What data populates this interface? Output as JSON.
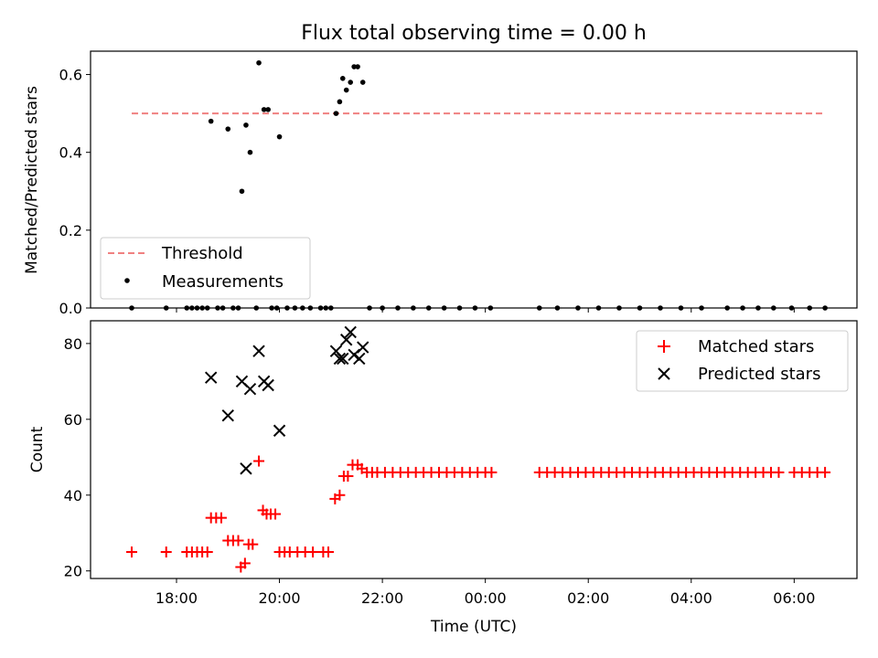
{
  "chart_data": [
    {
      "type": "scatter",
      "title": "Flux total observing time = 0.00 h",
      "xlabel": "",
      "ylabel": "Matched/Predicted stars",
      "xlim": [
        16.33,
        31.22
      ],
      "ylim": [
        0.0,
        0.66
      ],
      "yticks": [
        0.0,
        0.2,
        0.4,
        0.6
      ],
      "ytick_labels": [
        "0.0",
        "0.2",
        "0.4",
        "0.6"
      ],
      "legend": {
        "placement": "lower-left",
        "entries": [
          "Threshold",
          "Measurements"
        ]
      },
      "threshold": {
        "name": "Threshold",
        "y": 0.5,
        "x": [
          17.13,
          30.57
        ],
        "color": "#f08080",
        "style": "dashed"
      },
      "series": [
        {
          "name": "Measurements",
          "color": "#000000",
          "marker": "dot",
          "points": [
            [
              18.67,
              0.48
            ],
            [
              19.0,
              0.46
            ],
            [
              19.27,
              0.3
            ],
            [
              19.35,
              0.47
            ],
            [
              19.43,
              0.4
            ],
            [
              19.6,
              0.63
            ],
            [
              19.7,
              0.51
            ],
            [
              19.78,
              0.51
            ],
            [
              20.0,
              0.44
            ],
            [
              21.1,
              0.5
            ],
            [
              21.17,
              0.53
            ],
            [
              21.23,
              0.59
            ],
            [
              21.3,
              0.56
            ],
            [
              21.38,
              0.58
            ],
            [
              21.45,
              0.62
            ],
            [
              21.52,
              0.62
            ],
            [
              21.62,
              0.58
            ],
            [
              17.13,
              0.0
            ],
            [
              17.8,
              0.0
            ],
            [
              18.2,
              0.0
            ],
            [
              18.3,
              0.0
            ],
            [
              18.4,
              0.0
            ],
            [
              18.5,
              0.0
            ],
            [
              18.6,
              0.0
            ],
            [
              18.8,
              0.0
            ],
            [
              18.9,
              0.0
            ],
            [
              19.1,
              0.0
            ],
            [
              19.2,
              0.0
            ],
            [
              19.55,
              0.0
            ],
            [
              19.85,
              0.0
            ],
            [
              19.95,
              0.0
            ],
            [
              20.15,
              0.0
            ],
            [
              20.3,
              0.0
            ],
            [
              20.45,
              0.0
            ],
            [
              20.6,
              0.0
            ],
            [
              20.8,
              0.0
            ],
            [
              20.9,
              0.0
            ],
            [
              21.0,
              0.0
            ],
            [
              21.75,
              0.0
            ],
            [
              22.0,
              0.0
            ],
            [
              22.3,
              0.0
            ],
            [
              22.6,
              0.0
            ],
            [
              22.9,
              0.0
            ],
            [
              23.2,
              0.0
            ],
            [
              23.5,
              0.0
            ],
            [
              23.8,
              0.0
            ],
            [
              24.1,
              0.0
            ],
            [
              25.05,
              0.0
            ],
            [
              25.4,
              0.0
            ],
            [
              25.8,
              0.0
            ],
            [
              26.2,
              0.0
            ],
            [
              26.6,
              0.0
            ],
            [
              27.0,
              0.0
            ],
            [
              27.4,
              0.0
            ],
            [
              27.8,
              0.0
            ],
            [
              28.2,
              0.0
            ],
            [
              28.7,
              0.0
            ],
            [
              29.0,
              0.0
            ],
            [
              29.3,
              0.0
            ],
            [
              29.6,
              0.0
            ],
            [
              29.95,
              0.0
            ],
            [
              30.3,
              0.0
            ],
            [
              30.6,
              0.0
            ]
          ]
        }
      ]
    },
    {
      "type": "scatter",
      "title": "",
      "xlabel": "Time (UTC)",
      "ylabel": "Count",
      "xlim": [
        16.33,
        31.22
      ],
      "ylim": [
        18,
        86
      ],
      "yticks": [
        20,
        40,
        60,
        80
      ],
      "ytick_labels": [
        "20",
        "40",
        "60",
        "80"
      ],
      "xticks": [
        18,
        20,
        22,
        24,
        26,
        28,
        30
      ],
      "xtick_labels": [
        "18:00",
        "20:00",
        "22:00",
        "00:00",
        "02:00",
        "04:00",
        "06:00"
      ],
      "legend": {
        "placement": "top-right",
        "entries": [
          "Matched stars",
          "Predicted stars"
        ]
      },
      "series": [
        {
          "name": "Matched stars",
          "color": "#ff0000",
          "marker": "plus",
          "points": [
            [
              17.13,
              25
            ],
            [
              17.8,
              25
            ],
            [
              18.2,
              25
            ],
            [
              18.3,
              25
            ],
            [
              18.4,
              25
            ],
            [
              18.5,
              25
            ],
            [
              18.6,
              25
            ],
            [
              18.67,
              34
            ],
            [
              18.77,
              34
            ],
            [
              18.87,
              34
            ],
            [
              19.0,
              28
            ],
            [
              19.1,
              28
            ],
            [
              19.2,
              28
            ],
            [
              19.25,
              21
            ],
            [
              19.33,
              22
            ],
            [
              19.4,
              27
            ],
            [
              19.48,
              27
            ],
            [
              19.6,
              49
            ],
            [
              19.68,
              36
            ],
            [
              19.75,
              35
            ],
            [
              19.83,
              35
            ],
            [
              19.92,
              35
            ],
            [
              20.0,
              25
            ],
            [
              20.1,
              25
            ],
            [
              20.2,
              25
            ],
            [
              20.35,
              25
            ],
            [
              20.5,
              25
            ],
            [
              20.65,
              25
            ],
            [
              20.85,
              25
            ],
            [
              20.95,
              25
            ],
            [
              21.08,
              39
            ],
            [
              21.17,
              40
            ],
            [
              21.25,
              45
            ],
            [
              21.33,
              45
            ],
            [
              21.42,
              48
            ],
            [
              21.52,
              48
            ],
            [
              21.6,
              47
            ],
            [
              21.7,
              46
            ],
            [
              21.8,
              46
            ],
            [
              21.9,
              46
            ],
            [
              22.05,
              46
            ],
            [
              22.2,
              46
            ],
            [
              22.35,
              46
            ],
            [
              22.5,
              46
            ],
            [
              22.65,
              46
            ],
            [
              22.8,
              46
            ],
            [
              22.95,
              46
            ],
            [
              23.1,
              46
            ],
            [
              23.25,
              46
            ],
            [
              23.4,
              46
            ],
            [
              23.55,
              46
            ],
            [
              23.7,
              46
            ],
            [
              23.85,
              46
            ],
            [
              24.0,
              46
            ],
            [
              24.12,
              46
            ],
            [
              25.05,
              46
            ],
            [
              25.2,
              46
            ],
            [
              25.35,
              46
            ],
            [
              25.5,
              46
            ],
            [
              25.65,
              46
            ],
            [
              25.8,
              46
            ],
            [
              25.95,
              46
            ],
            [
              26.1,
              46
            ],
            [
              26.25,
              46
            ],
            [
              26.4,
              46
            ],
            [
              26.55,
              46
            ],
            [
              26.7,
              46
            ],
            [
              26.85,
              46
            ],
            [
              27.0,
              46
            ],
            [
              27.15,
              46
            ],
            [
              27.3,
              46
            ],
            [
              27.45,
              46
            ],
            [
              27.6,
              46
            ],
            [
              27.75,
              46
            ],
            [
              27.9,
              46
            ],
            [
              28.05,
              46
            ],
            [
              28.2,
              46
            ],
            [
              28.35,
              46
            ],
            [
              28.5,
              46
            ],
            [
              28.65,
              46
            ],
            [
              28.8,
              46
            ],
            [
              28.95,
              46
            ],
            [
              29.1,
              46
            ],
            [
              29.25,
              46
            ],
            [
              29.4,
              46
            ],
            [
              29.55,
              46
            ],
            [
              29.7,
              46
            ],
            [
              30.0,
              46
            ],
            [
              30.15,
              46
            ],
            [
              30.3,
              46
            ],
            [
              30.45,
              46
            ],
            [
              30.6,
              46
            ]
          ]
        },
        {
          "name": "Predicted stars",
          "color": "#000000",
          "marker": "x",
          "points": [
            [
              18.67,
              71
            ],
            [
              19.0,
              61
            ],
            [
              19.27,
              70
            ],
            [
              19.35,
              47
            ],
            [
              19.43,
              68
            ],
            [
              19.6,
              78
            ],
            [
              19.7,
              70
            ],
            [
              19.78,
              69
            ],
            [
              20.0,
              57
            ],
            [
              21.1,
              78
            ],
            [
              21.17,
              76
            ],
            [
              21.23,
              76
            ],
            [
              21.3,
              81
            ],
            [
              21.38,
              83
            ],
            [
              21.45,
              77
            ],
            [
              21.55,
              76
            ],
            [
              21.62,
              79
            ]
          ]
        }
      ]
    }
  ]
}
